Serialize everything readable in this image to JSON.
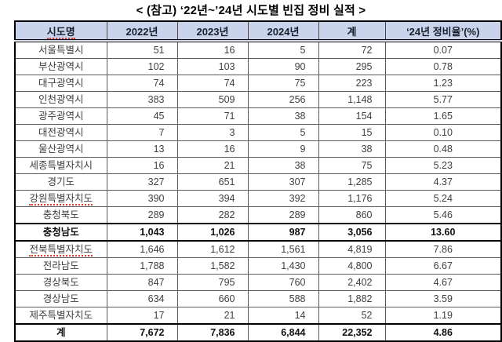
{
  "title": "< (참고) ‘22년~’24년 시도별 빈집 정비 실적 >",
  "colors": {
    "header_bg": "#c9d3ec",
    "outer_border": "#000000",
    "inner_border": "#5a5a5a",
    "cell_text": "#404040",
    "spellcheck_underline": "#e03a2d"
  },
  "table": {
    "columns": [
      "시도명",
      "2022년",
      "2023년",
      "2024년",
      "계",
      "‘24년 정비율’(%)"
    ],
    "squiggle_columns": [
      0
    ],
    "rows": [
      {
        "name": "서울특별시",
        "values": [
          "51",
          "16",
          "5",
          "72",
          "0.07"
        ]
      },
      {
        "name": "부산광역시",
        "values": [
          "102",
          "103",
          "90",
          "295",
          "0.78"
        ]
      },
      {
        "name": "대구광역시",
        "values": [
          "74",
          "74",
          "75",
          "223",
          "1.23"
        ]
      },
      {
        "name": "인천광역시",
        "values": [
          "383",
          "509",
          "256",
          "1,148",
          "5.77"
        ]
      },
      {
        "name": "광주광역시",
        "values": [
          "45",
          "71",
          "38",
          "154",
          "1.65"
        ]
      },
      {
        "name": "대전광역시",
        "values": [
          "7",
          "3",
          "5",
          "15",
          "0.10"
        ]
      },
      {
        "name": "울산광역시",
        "values": [
          "13",
          "16",
          "9",
          "38",
          "0.48"
        ]
      },
      {
        "name": "세종특별자치시",
        "values": [
          "16",
          "21",
          "38",
          "75",
          "5.23"
        ]
      },
      {
        "name": "경기도",
        "values": [
          "327",
          "651",
          "307",
          "1,285",
          "4.37"
        ]
      },
      {
        "name": "강원특별자치도",
        "values": [
          "390",
          "394",
          "392",
          "1,176",
          "5.24"
        ],
        "squiggle": true
      },
      {
        "name": "충청북도",
        "values": [
          "289",
          "282",
          "289",
          "860",
          "5.46"
        ]
      },
      {
        "name": "충청남도",
        "values": [
          "1,043",
          "1,026",
          "987",
          "3,056",
          "13.60"
        ],
        "bold": true,
        "em": true
      },
      {
        "name": "전북특별자치도",
        "values": [
          "1,646",
          "1,612",
          "1,561",
          "4,819",
          "7.86"
        ],
        "squiggle": true
      },
      {
        "name": "전라남도",
        "values": [
          "1,788",
          "1,582",
          "1,430",
          "4,800",
          "6.67"
        ]
      },
      {
        "name": "경상북도",
        "values": [
          "847",
          "795",
          "760",
          "2,402",
          "4.67"
        ]
      },
      {
        "name": "경상남도",
        "values": [
          "634",
          "660",
          "588",
          "1,882",
          "3.59"
        ]
      },
      {
        "name": "제주특별자치도",
        "values": [
          "17",
          "21",
          "14",
          "52",
          "1.19"
        ]
      },
      {
        "name": "계",
        "values": [
          "7,672",
          "7,836",
          "6,844",
          "22,352",
          "4.86"
        ],
        "total": true
      }
    ]
  }
}
